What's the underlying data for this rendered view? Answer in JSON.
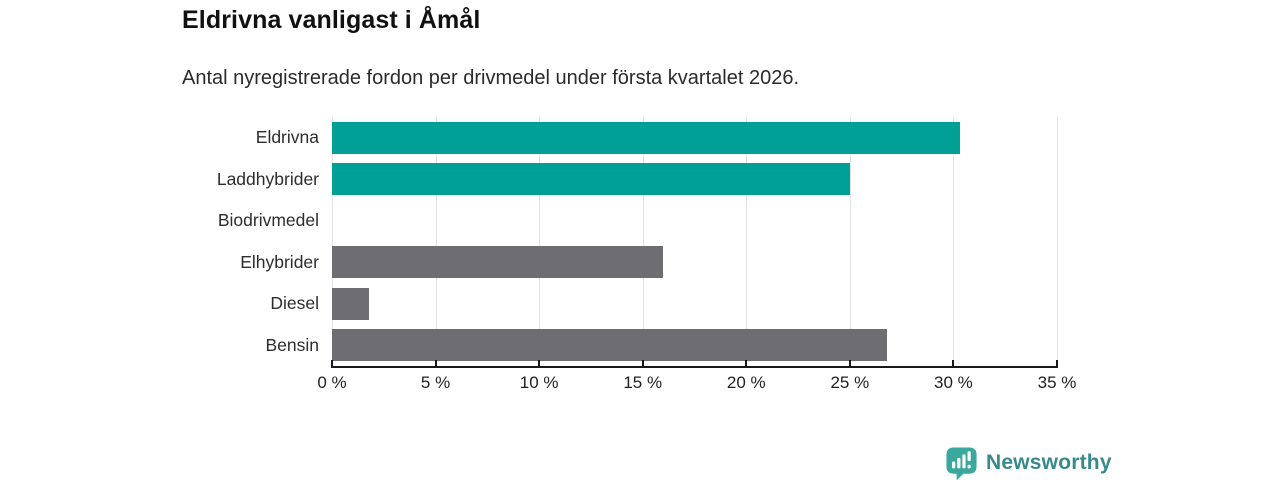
{
  "header": {
    "title": "Eldrivna vanligast i Åmål",
    "subtitle": "Antal nyregistrerade fordon per drivmedel under första kvartalet 2026."
  },
  "chart_data": {
    "type": "bar",
    "orientation": "horizontal",
    "title": "Eldrivna vanligast i Åmål",
    "subtitle": "Antal nyregistrerade fordon per drivmedel under första kvartalet 2026.",
    "categories": [
      "Eldrivna",
      "Laddhybrider",
      "Biodrivmedel",
      "Elhybrider",
      "Diesel",
      "Bensin"
    ],
    "values": [
      30.3,
      25,
      0,
      16,
      1.8,
      26.8
    ],
    "unit": "%",
    "bar_colors": [
      "#00a096",
      "#00a096",
      "#6e6d72",
      "#6e6d72",
      "#6e6d72",
      "#6e6d72"
    ],
    "xlim": [
      0,
      35
    ],
    "x_tick_values": [
      0,
      5,
      10,
      15,
      20,
      25,
      30,
      35
    ],
    "x_tick_labels": [
      "0 %",
      "5 %",
      "10 %",
      "15 %",
      "20 %",
      "25 %",
      "30 %",
      "35 %"
    ],
    "grid": true,
    "legend": false,
    "xlabel": "",
    "ylabel": "",
    "colors": {
      "highlight": "#00a096",
      "default": "#6e6d72",
      "grid": "#e3e3e3",
      "axis": "#191919",
      "tick_label": "#222222",
      "category_label": "#2d2d2d"
    }
  },
  "branding": {
    "name": "Newsworthy",
    "text_color": "#38898a",
    "icon_color": "#3aa89c",
    "icon": "newsworthy-bubble-barchart-icon"
  }
}
